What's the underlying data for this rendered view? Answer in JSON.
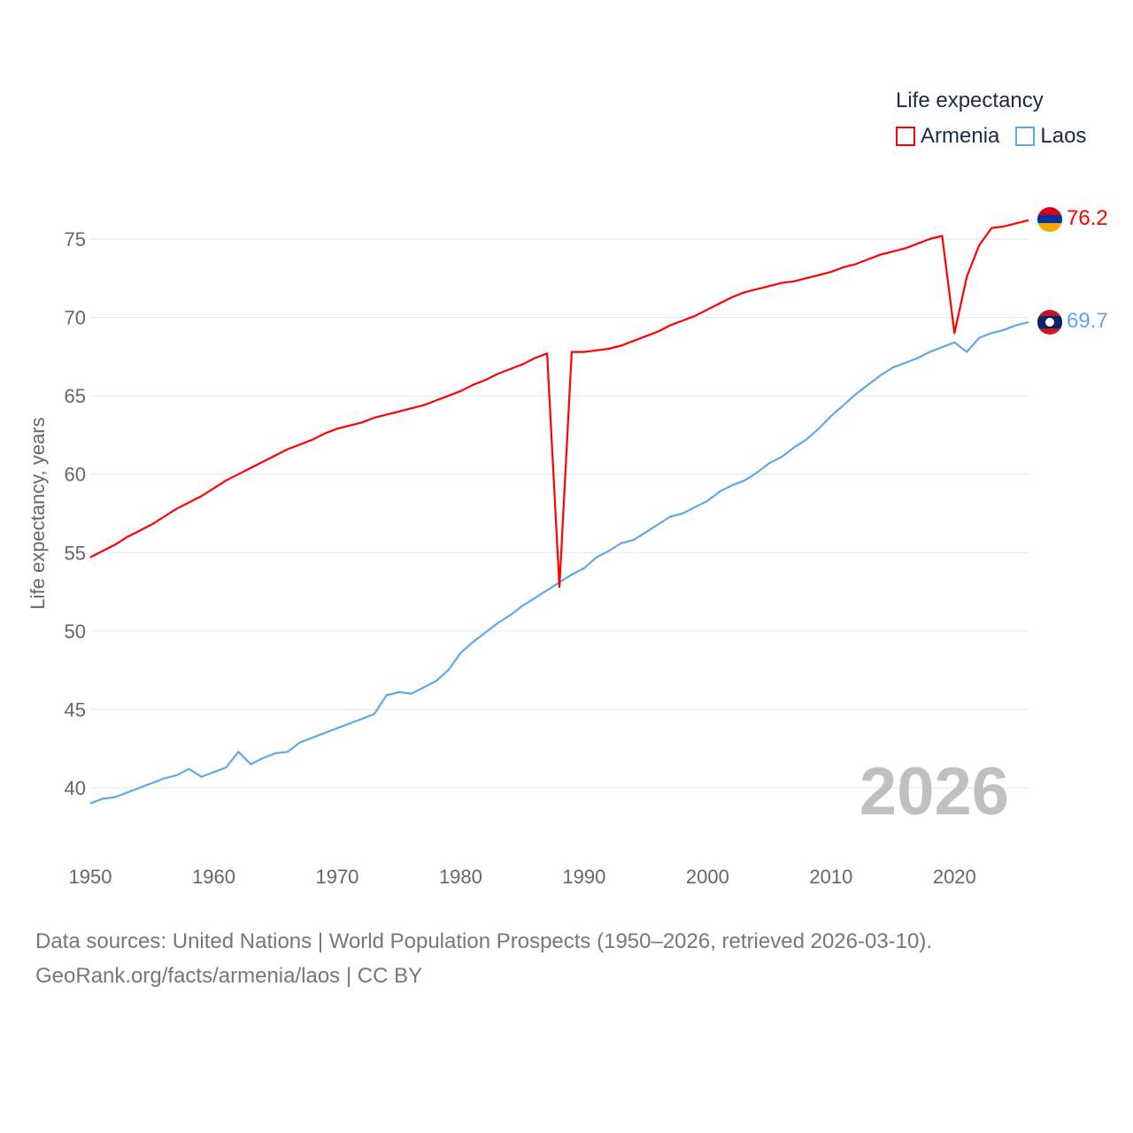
{
  "chart_data": {
    "type": "line",
    "title": "Life expectancy",
    "xlabel": "",
    "ylabel": "Life expectancy, years",
    "xlim": [
      1950,
      2026
    ],
    "ylim": [
      37,
      78
    ],
    "x_ticks": [
      "1950",
      "1960",
      "1970",
      "1980",
      "1990",
      "2000",
      "2010",
      "2020"
    ],
    "y_ticks": [
      "40",
      "45",
      "50",
      "55",
      "60",
      "65",
      "70",
      "75"
    ],
    "grid": true,
    "legend_position": "top-right",
    "year_watermark": "2026",
    "x": [
      1950,
      1951,
      1952,
      1953,
      1954,
      1955,
      1956,
      1957,
      1958,
      1959,
      1960,
      1961,
      1962,
      1963,
      1964,
      1965,
      1966,
      1967,
      1968,
      1969,
      1970,
      1971,
      1972,
      1973,
      1974,
      1975,
      1976,
      1977,
      1978,
      1979,
      1980,
      1981,
      1982,
      1983,
      1984,
      1985,
      1986,
      1987,
      1988,
      1989,
      1990,
      1991,
      1992,
      1993,
      1994,
      1995,
      1996,
      1997,
      1998,
      1999,
      2000,
      2001,
      2002,
      2003,
      2004,
      2005,
      2006,
      2007,
      2008,
      2009,
      2010,
      2011,
      2012,
      2013,
      2014,
      2015,
      2016,
      2017,
      2018,
      2019,
      2020,
      2021,
      2022,
      2023,
      2024,
      2025,
      2026
    ],
    "series": [
      {
        "name": "Armenia",
        "color": "#ff0000",
        "end_label": "76.2",
        "values": [
          54.7,
          55.1,
          55.5,
          56.0,
          56.4,
          56.8,
          57.3,
          57.8,
          58.2,
          58.6,
          59.1,
          59.6,
          60.0,
          60.4,
          60.8,
          61.2,
          61.6,
          61.9,
          62.2,
          62.6,
          62.9,
          63.1,
          63.3,
          63.6,
          63.8,
          64.0,
          64.2,
          64.4,
          64.7,
          65.0,
          65.3,
          65.7,
          66.0,
          66.4,
          66.7,
          67.0,
          67.4,
          67.7,
          52.8,
          67.8,
          67.8,
          67.9,
          68.0,
          68.2,
          68.5,
          68.8,
          69.1,
          69.5,
          69.8,
          70.1,
          70.5,
          70.9,
          71.3,
          71.6,
          71.8,
          72.0,
          72.2,
          72.3,
          72.5,
          72.7,
          72.9,
          73.2,
          73.4,
          73.7,
          74.0,
          74.2,
          74.4,
          74.7,
          75.0,
          75.2,
          69.0,
          72.6,
          74.6,
          75.7,
          75.8,
          76.0,
          76.2
        ]
      },
      {
        "name": "Laos",
        "color": "#5ea8ec",
        "end_label": "69.7",
        "values": [
          39.0,
          39.3,
          39.4,
          39.7,
          40.0,
          40.3,
          40.6,
          40.8,
          41.2,
          40.7,
          41.0,
          41.3,
          42.3,
          41.5,
          41.9,
          42.2,
          42.3,
          42.9,
          43.2,
          43.5,
          43.8,
          44.1,
          44.4,
          44.7,
          45.9,
          46.1,
          46.0,
          46.4,
          46.8,
          47.5,
          48.6,
          49.3,
          49.9,
          50.5,
          51.0,
          51.6,
          52.1,
          52.6,
          53.1,
          53.6,
          54.0,
          54.7,
          55.1,
          55.6,
          55.8,
          56.3,
          56.8,
          57.3,
          57.5,
          57.9,
          58.3,
          58.9,
          59.3,
          59.6,
          60.1,
          60.7,
          61.1,
          61.7,
          62.2,
          62.9,
          63.7,
          64.4,
          65.1,
          65.7,
          66.3,
          66.8,
          67.1,
          67.4,
          67.8,
          68.1,
          68.4,
          67.8,
          68.7,
          69.0,
          69.2,
          69.5,
          69.7
        ]
      }
    ]
  },
  "legend": {
    "title": "Life expectancy",
    "items": [
      "Armenia",
      "Laos"
    ]
  },
  "footer": {
    "line1": "Data sources: United Nations | World Population Prospects (1950–2026, retrieved 2026-03-10).",
    "line2": "GeoRank.org/facts/armenia/laos | CC BY"
  }
}
